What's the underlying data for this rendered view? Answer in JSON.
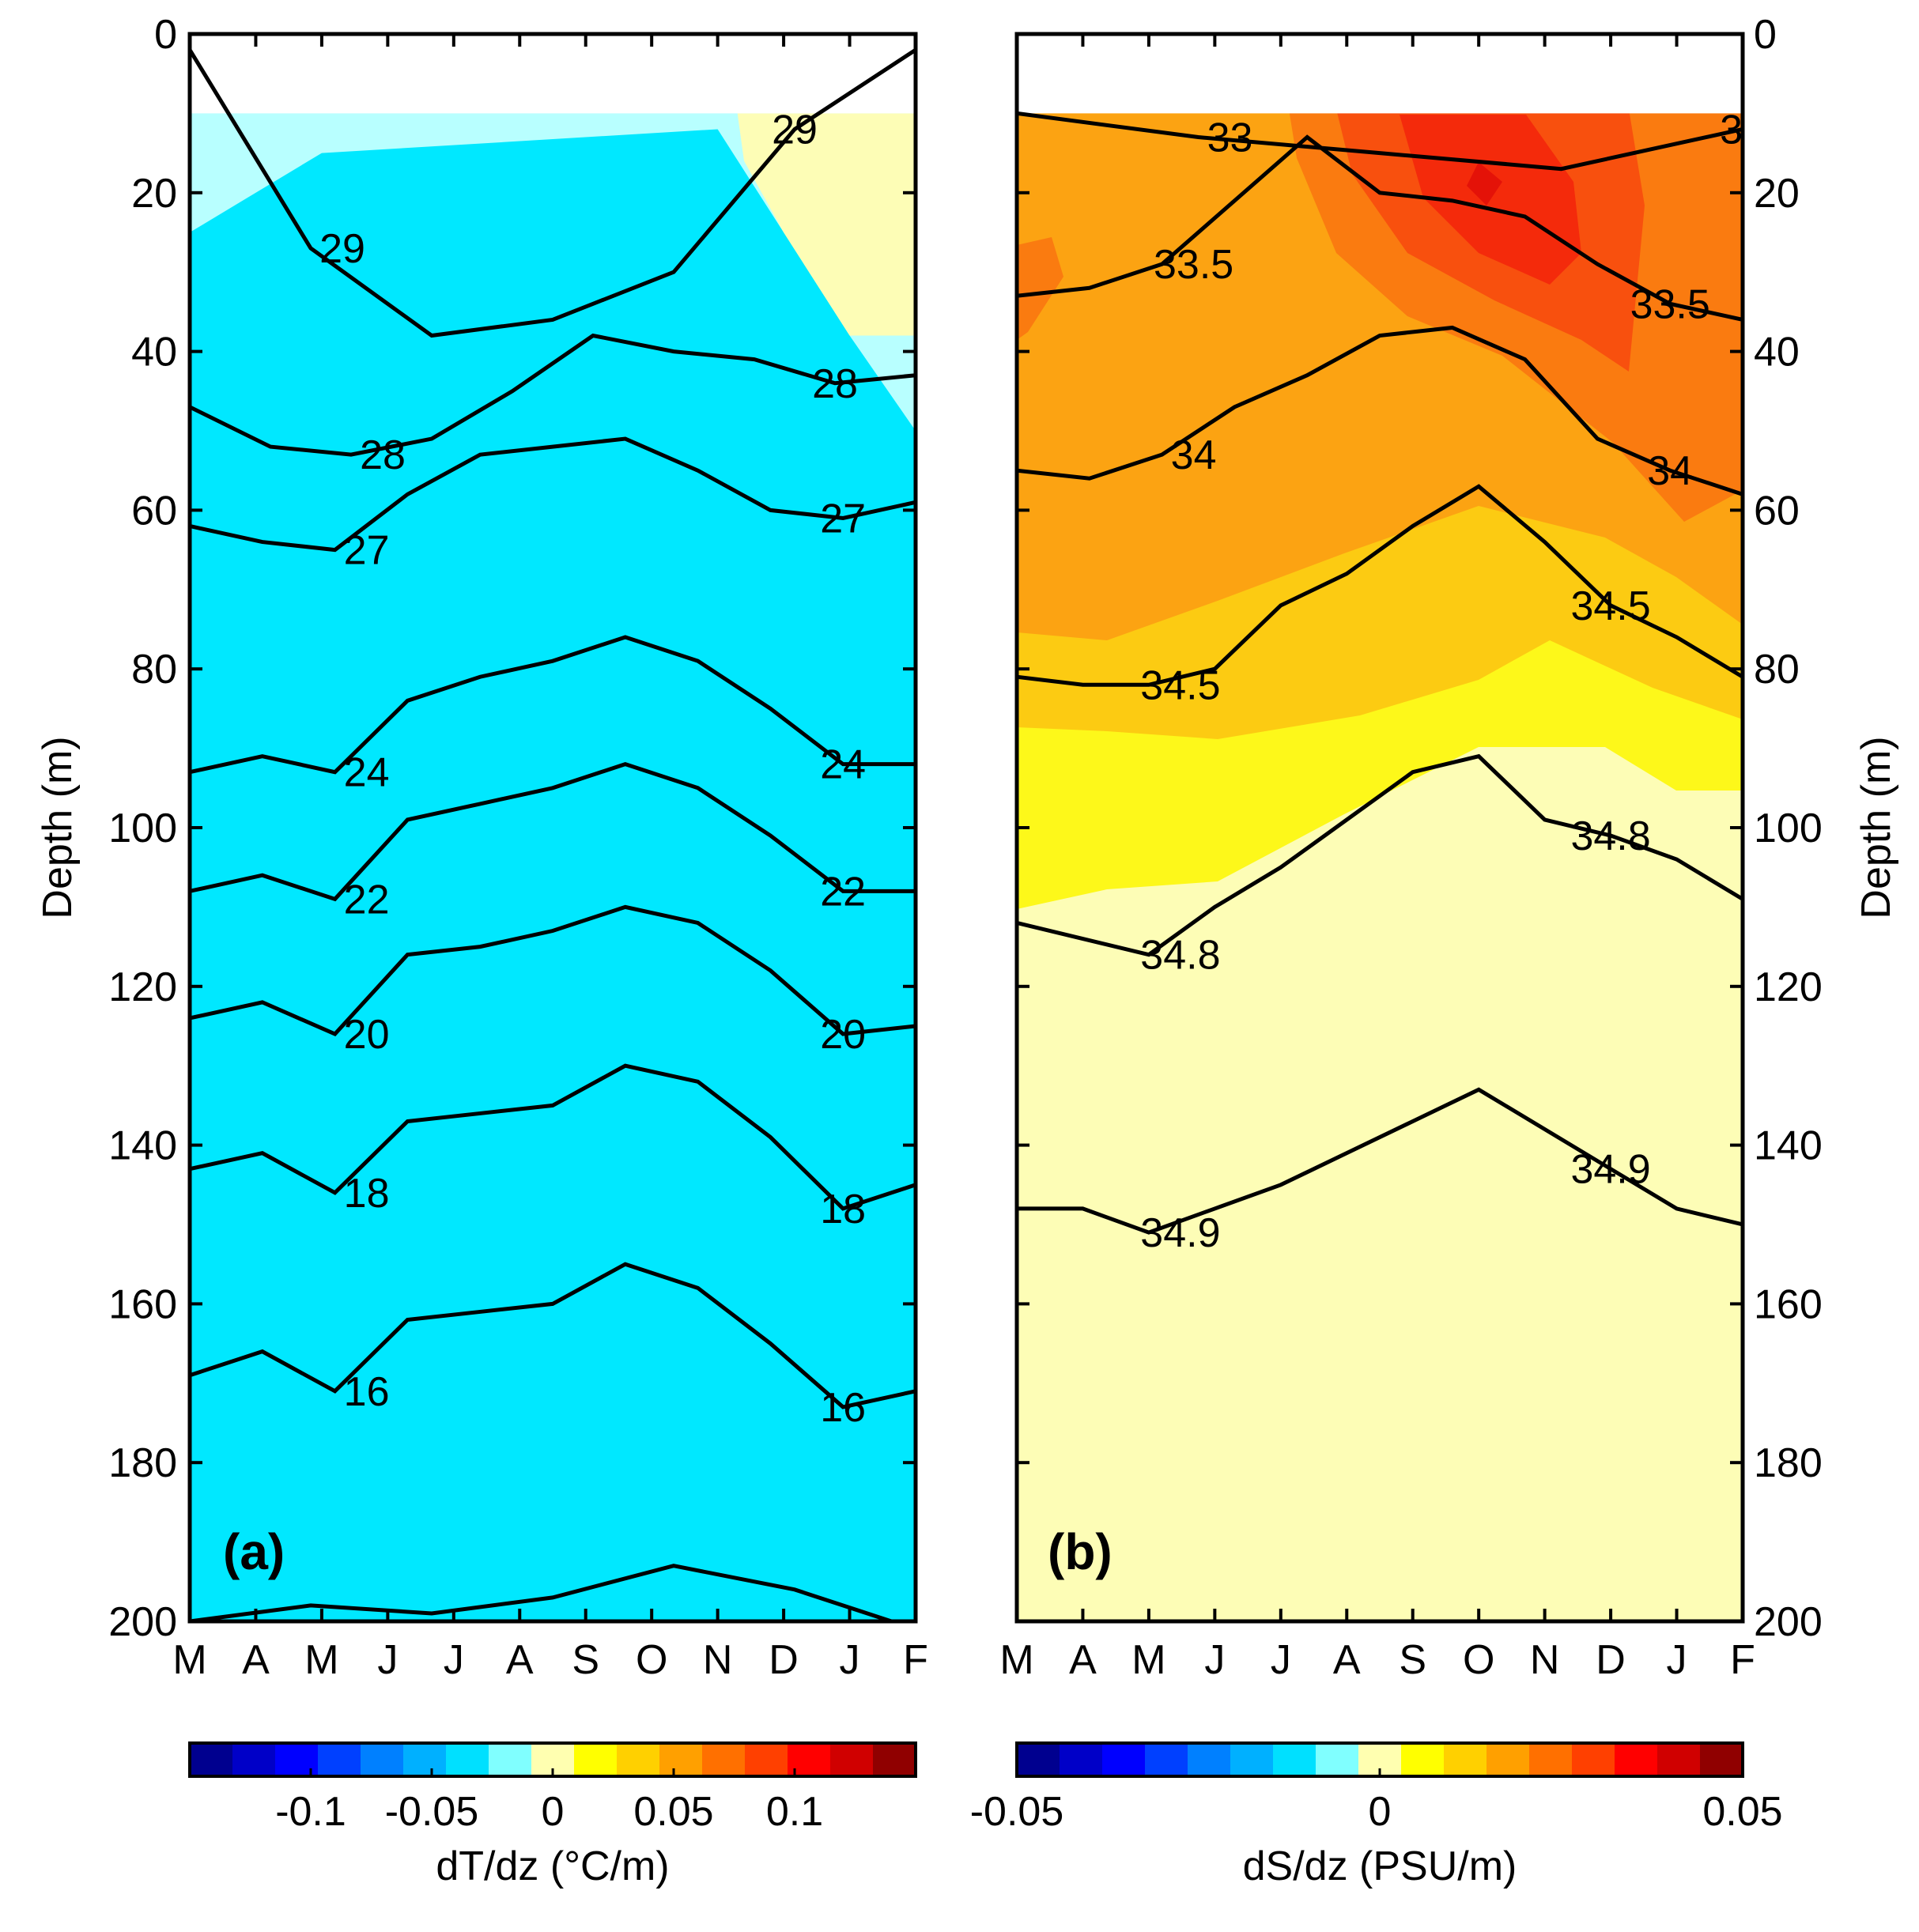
{
  "chart_data": [
    {
      "type": "heatmap",
      "panel_label": "(a)",
      "ylabel": "Depth (m)",
      "y_ticks": [
        "0",
        "20",
        "40",
        "60",
        "80",
        "100",
        "120",
        "140",
        "160",
        "180",
        "200"
      ],
      "x_ticks": [
        "M",
        "A",
        "M",
        "J",
        "J",
        "A",
        "S",
        "O",
        "N",
        "D",
        "J",
        "F"
      ],
      "ylim": [
        200,
        0
      ],
      "colorbar": {
        "title": "dT/dz (°C/m)",
        "range": [
          -0.15,
          0.15
        ],
        "labels": [
          {
            "v": -0.1,
            "t": "-0.1"
          },
          {
            "v": -0.05,
            "t": "-0.05"
          },
          {
            "v": 0,
            "t": "0"
          },
          {
            "v": 0.05,
            "t": "0.05"
          },
          {
            "v": 0.1,
            "t": "0.1"
          }
        ]
      },
      "depth_bands": [
        {
          "y": [
            10,
            10
          ],
          "v": -0.03
        },
        {
          "y": [
            25,
            22
          ],
          "v": -0.05
        },
        {
          "y": [
            45,
            38
          ],
          "v": -0.07
        },
        {
          "y": [
            58,
            48
          ],
          "v": -0.09
        },
        {
          "y": [
            72,
            55
          ],
          "v": -0.11
        },
        {
          "y": [
            80,
            62
          ],
          "v": -0.12
        },
        {
          "y": [
            108,
            96
          ],
          "v": -0.11
        },
        {
          "y": [
            120,
            108
          ],
          "v": -0.1
        },
        {
          "y": [
            138,
            126
          ],
          "v": -0.09
        },
        {
          "y": [
            152,
            140
          ],
          "v": -0.07
        },
        {
          "y": [
            178,
            164
          ],
          "v": -0.06
        },
        {
          "y": [
            195,
            186
          ],
          "v": -0.05
        }
      ],
      "contours": [
        {
          "label": "16",
          "y": [
            169,
            166,
            171,
            162,
            161,
            160,
            155,
            158,
            165,
            173,
            171
          ]
        },
        {
          "label": "18",
          "y": [
            143,
            141,
            146,
            137,
            136,
            135,
            130,
            132,
            139,
            148,
            145
          ]
        },
        {
          "label": "20",
          "y": [
            124,
            122,
            126,
            116,
            115,
            113,
            110,
            112,
            118,
            126,
            125
          ]
        },
        {
          "label": "22",
          "y": [
            108,
            106,
            109,
            99,
            97,
            95,
            92,
            95,
            101,
            108,
            108
          ]
        },
        {
          "label": "24",
          "y": [
            93,
            91,
            93,
            84,
            81,
            79,
            76,
            79,
            85,
            92,
            92
          ]
        },
        {
          "label": "27",
          "y": [
            62,
            64,
            65,
            58,
            53,
            52,
            51,
            55,
            60,
            61,
            59
          ]
        },
        {
          "label": "28",
          "y": [
            47,
            52,
            53,
            51,
            45,
            38,
            40,
            41,
            44,
            43
          ]
        },
        {
          "label": "29",
          "y": [
            2,
            27,
            38,
            36,
            30,
            12,
            2
          ]
        },
        {
          "label": "",
          "y": [
            200,
            198,
            199,
            197,
            193,
            196,
            201
          ]
        }
      ]
    },
    {
      "type": "heatmap",
      "panel_label": "(b)",
      "ylabel": "Depth (m)",
      "y_ticks": [
        "0",
        "20",
        "40",
        "60",
        "80",
        "100",
        "120",
        "140",
        "160",
        "180",
        "200"
      ],
      "x_ticks": [
        "M",
        "A",
        "M",
        "J",
        "J",
        "A",
        "S",
        "O",
        "N",
        "D",
        "J",
        "F"
      ],
      "ylim": [
        200,
        0
      ],
      "colorbar": {
        "title": "dS/dz (PSU/m)",
        "range": [
          -0.05,
          0.05
        ],
        "labels": [
          {
            "v": -0.05,
            "t": "-0.05"
          },
          {
            "v": 0,
            "t": "0"
          },
          {
            "v": 0.05,
            "t": "0.05"
          }
        ]
      },
      "contours": [
        {
          "label": "33",
          "y": [
            10,
            13,
            15,
            17,
            12
          ]
        },
        {
          "label": "33.5",
          "y": [
            33,
            32,
            29,
            21,
            13,
            20,
            21,
            23,
            29,
            34,
            36
          ]
        },
        {
          "label": "34",
          "y": [
            55,
            56,
            53,
            47,
            43,
            38,
            37,
            41,
            51,
            55,
            58
          ]
        },
        {
          "label": "34.5",
          "y": [
            81,
            82,
            82,
            80,
            72,
            68,
            62,
            57,
            64,
            72,
            76,
            81
          ]
        },
        {
          "label": "34.8",
          "y": [
            112,
            114,
            116,
            110,
            105,
            99,
            93,
            91,
            99,
            101,
            104,
            109
          ]
        },
        {
          "label": "34.9",
          "y": [
            148,
            148,
            151,
            148,
            145,
            141,
            137,
            133,
            138,
            143,
            148,
            150
          ]
        }
      ]
    }
  ]
}
